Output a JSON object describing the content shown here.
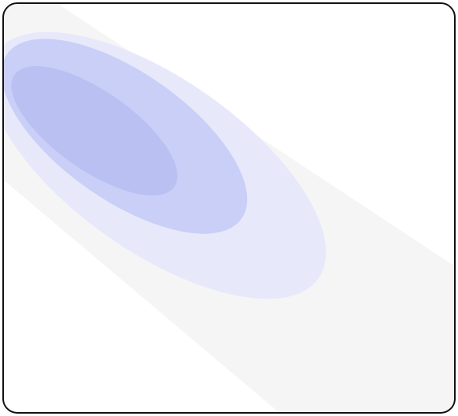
{
  "figure": {
    "colors": {
      "outer_band": "#f5f5f5",
      "level_1": "#e7e9fb",
      "level_2": "#c9cff7",
      "level_3": "#bac1f2",
      "border": "#111111",
      "background": "#ffffff"
    }
  }
}
